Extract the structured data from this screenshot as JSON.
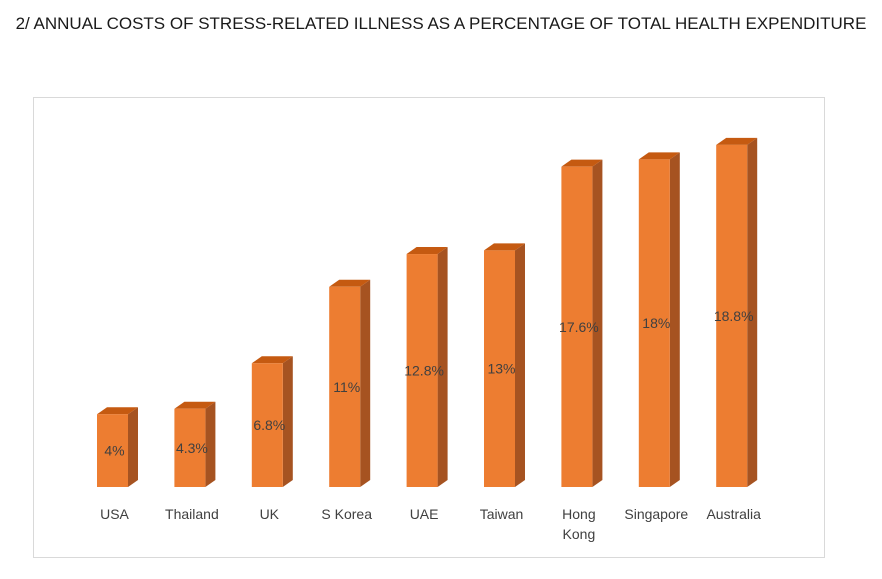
{
  "title": "2/ ANNUAL COSTS OF STRESS-RELATED ILLNESS AS A PERCENTAGE OF TOTAL HEALTH EXPENDITURE",
  "colors": {
    "bar_front": "#ED7D31",
    "bar_side": "#A65321",
    "bar_top": "#C55A11",
    "label_text": "#404040",
    "frame_border": "#D9D9D9"
  },
  "chart_data": {
    "type": "bar",
    "style": "3d-column",
    "title": "2/ ANNUAL COSTS OF STRESS-RELATED ILLNESS AS A PERCENTAGE OF TOTAL HEALTH EXPENDITURE",
    "xlabel": "",
    "ylabel": "",
    "unit": "%",
    "grid": false,
    "legend": "none",
    "categories": [
      "USA",
      "Thailand",
      "UK",
      "S Korea",
      "UAE",
      "Taiwan",
      "Hong Kong",
      "Singapore",
      "Australia"
    ],
    "values": [
      4,
      4.3,
      6.8,
      11,
      12.8,
      13,
      17.6,
      18,
      18.8
    ],
    "data_labels": [
      "4%",
      "4.3%",
      "6.8%",
      "11%",
      "12.8%",
      "13%",
      "17.6%",
      "18%",
      "18.8%"
    ],
    "ylim": [
      0,
      20
    ]
  }
}
